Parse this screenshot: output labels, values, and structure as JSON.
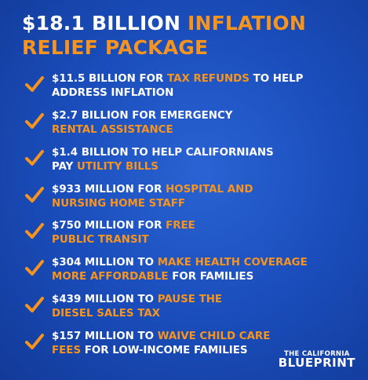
{
  "title": {
    "lines": [
      [
        {
          "text": "$18.1 BILLION",
          "accent": false
        },
        {
          "text": "INFLATION",
          "accent": true
        }
      ],
      [
        {
          "text": "RELIEF PACKAGE",
          "accent": true
        }
      ]
    ]
  },
  "items": [
    {
      "lines": [
        [
          {
            "text": "$11.5 BILLION FOR",
            "accent": false
          },
          {
            "text": "TAX REFUNDS",
            "accent": true
          },
          {
            "text": "TO HELP",
            "accent": false
          }
        ],
        [
          {
            "text": "ADDRESS INFLATION",
            "accent": false
          }
        ]
      ]
    },
    {
      "lines": [
        [
          {
            "text": "$2.7 BILLION FOR EMERGENCY",
            "accent": false
          }
        ],
        [
          {
            "text": "RENTAL ASSISTANCE",
            "accent": true
          }
        ]
      ]
    },
    {
      "lines": [
        [
          {
            "text": "$1.4 BILLION TO HELP CALIFORNIANS",
            "accent": false
          }
        ],
        [
          {
            "text": "PAY",
            "accent": false
          },
          {
            "text": "UTILITY BILLS",
            "accent": true
          }
        ]
      ]
    },
    {
      "lines": [
        [
          {
            "text": "$933 MILLION FOR",
            "accent": false
          },
          {
            "text": "HOSPITAL AND",
            "accent": true
          }
        ],
        [
          {
            "text": "NURSING HOME STAFF",
            "accent": true
          }
        ]
      ]
    },
    {
      "lines": [
        [
          {
            "text": "$750 MILLION FOR",
            "accent": false
          },
          {
            "text": "FREE",
            "accent": true
          }
        ],
        [
          {
            "text": "PUBLIC TRANSIT",
            "accent": true
          }
        ]
      ]
    },
    {
      "lines": [
        [
          {
            "text": "$304 MILLION TO",
            "accent": false
          },
          {
            "text": "MAKE HEALTH COVERAGE",
            "accent": true
          }
        ],
        [
          {
            "text": "MORE AFFORDABLE",
            "accent": true
          },
          {
            "text": "FOR FAMILIES",
            "accent": false
          }
        ]
      ]
    },
    {
      "lines": [
        [
          {
            "text": "$439 MILLION TO",
            "accent": false
          },
          {
            "text": "PAUSE THE",
            "accent": true
          }
        ],
        [
          {
            "text": "DIESEL SALES TAX",
            "accent": true
          }
        ]
      ]
    },
    {
      "lines": [
        [
          {
            "text": "$157 MILLION TO",
            "accent": false
          },
          {
            "text": "WAIVE CHILD CARE",
            "accent": true
          }
        ],
        [
          {
            "text": "FEES",
            "accent": true
          },
          {
            "text": "FOR LOW-INCOME FAMILIES",
            "accent": false
          }
        ]
      ]
    }
  ],
  "logo": {
    "line1": "THE CALIFORNIA",
    "line2": "BLUEPRINT"
  }
}
